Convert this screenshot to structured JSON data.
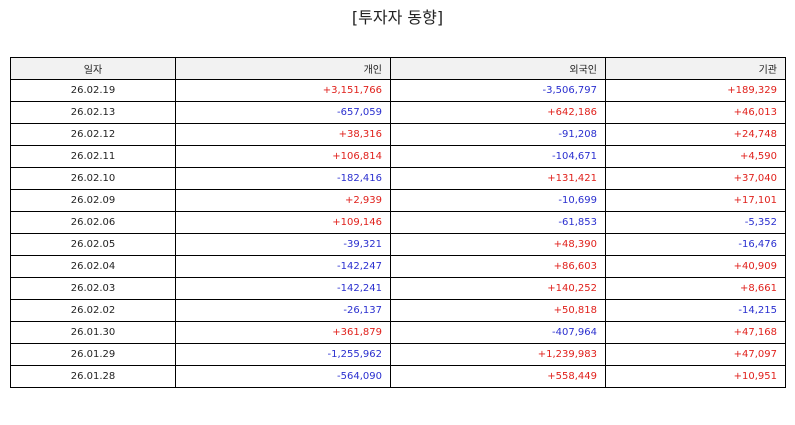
{
  "title": "[투자자 동향]",
  "colors": {
    "positive": "#e0211c",
    "negative": "#2a2fcf",
    "header_bg": "#f2f2f2",
    "border": "#000000"
  },
  "table": {
    "headers": {
      "date": "일자",
      "individual": "개인",
      "foreign": "외국인",
      "institution": "기관"
    },
    "rows": [
      {
        "date": "26.02.19",
        "individual": "+3,151,766",
        "foreign": "-3,506,797",
        "institution": "+189,329"
      },
      {
        "date": "26.02.13",
        "individual": "-657,059",
        "foreign": "+642,186",
        "institution": "+46,013"
      },
      {
        "date": "26.02.12",
        "individual": "+38,316",
        "foreign": "-91,208",
        "institution": "+24,748"
      },
      {
        "date": "26.02.11",
        "individual": "+106,814",
        "foreign": "-104,671",
        "institution": "+4,590"
      },
      {
        "date": "26.02.10",
        "individual": "-182,416",
        "foreign": "+131,421",
        "institution": "+37,040"
      },
      {
        "date": "26.02.09",
        "individual": "+2,939",
        "foreign": "-10,699",
        "institution": "+17,101"
      },
      {
        "date": "26.02.06",
        "individual": "+109,146",
        "foreign": "-61,853",
        "institution": "-5,352"
      },
      {
        "date": "26.02.05",
        "individual": "-39,321",
        "foreign": "+48,390",
        "institution": "-16,476"
      },
      {
        "date": "26.02.04",
        "individual": "-142,247",
        "foreign": "+86,603",
        "institution": "+40,909"
      },
      {
        "date": "26.02.03",
        "individual": "-142,241",
        "foreign": "+140,252",
        "institution": "+8,661"
      },
      {
        "date": "26.02.02",
        "individual": "-26,137",
        "foreign": "+50,818",
        "institution": "-14,215"
      },
      {
        "date": "26.01.30",
        "individual": "+361,879",
        "foreign": "-407,964",
        "institution": "+47,168"
      },
      {
        "date": "26.01.29",
        "individual": "-1,255,962",
        "foreign": "+1,239,983",
        "institution": "+47,097"
      },
      {
        "date": "26.01.28",
        "individual": "-564,090",
        "foreign": "+558,449",
        "institution": "+10,951"
      }
    ]
  }
}
